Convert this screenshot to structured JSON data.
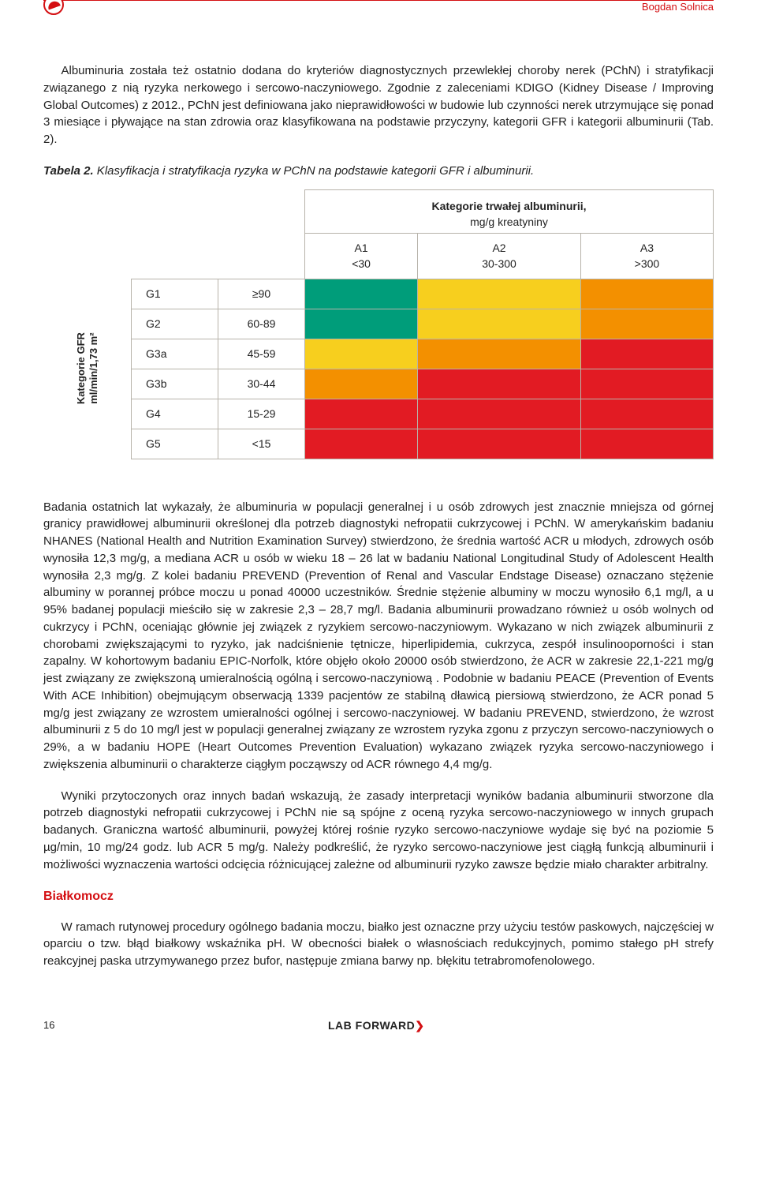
{
  "header": {
    "author": "Bogdan Solnica"
  },
  "paragraphs": {
    "intro": "Albuminuria została też ostatnio dodana do kryteriów diagnostycznych przewlekłej choroby nerek (PChN) i stratyfikacji związanego z nią ryzyka nerkowego i sercowo-naczyniowego. Zgodnie z zaleceniami KDIGO (Kidney Disease / Improving Global Outcomes) z 2012., PChN jest definiowana jako nieprawidłowości w budowie lub czynności nerek utrzymujące się ponad 3 miesiące i pływające na stan zdrowia oraz klasyfikowana na podstawie przyczyny, kategorii GFR i kategorii albuminurii (Tab. 2).",
    "mid1": "Badania ostatnich lat wykazały, że albuminuria w populacji generalnej i u osób zdrowych jest znacznie mniejsza od górnej granicy prawidłowej albuminurii określonej dla potrzeb diagnostyki nefropatii cukrzycowej i PChN. W amerykańskim badaniu NHANES (National Health and Nutrition Examination Survey) stwierdzono, że średnia wartość ACR u młodych, zdrowych osób wynosiła 12,3 mg/g, a mediana ACR u osób w wieku 18 – 26 lat w badaniu National Longitudinal Study of Adolescent Health wynosiła 2,3 mg/g. Z kolei badaniu PREVEND (Prevention of Renal and Vascular Endstage Disease) oznaczano stężenie albuminy w porannej próbce moczu u ponad 40000 uczestników. Średnie stężenie albuminy w moczu wynosiło 6,1 mg/l, a u 95% badanej populacji mieściło się w zakresie 2,3 – 28,7 mg/l. Badania albuminurii prowadzano również u osób wolnych od cukrzycy i PChN, oceniając głównie jej związek z ryzykiem sercowo-naczyniowym. Wykazano w nich związek albuminurii z chorobami zwiększającymi to ryzyko, jak nadciśnienie tętnicze, hiperlipidemia, cukrzyca, zespół insulinooporności i stan zapalny. W kohortowym badaniu EPIC-Norfolk, które objęło około 20000 osób stwierdzono, że ACR w zakresie 22,1-221 mg/g jest związany ze zwiększoną umieralnością ogólną i sercowo-naczyniową . Podobnie w badaniu PEACE (Prevention of Events With ACE Inhibition) obejmującym obserwacją 1339 pacjentów ze stabilną dławicą piersiową stwierdzono, że ACR ponad 5 mg/g jest związany ze wzrostem umieralności ogólnej i sercowo-naczyniowej. W badaniu PREVEND, stwierdzono, że wzrost albuminurii z 5 do 10 mg/l jest w populacji generalnej związany ze wzrostem ryzyka zgonu z przyczyn sercowo-naczyniowych o 29%, a w badaniu HOPE (Heart Outcomes Prevention Evaluation) wykazano związek ryzyka sercowo-naczyniowego i zwiększenia albuminurii o charakterze ciągłym począwszy od ACR równego 4,4 mg/g.",
    "mid2": "Wyniki przytoczonych oraz innych badań wskazują, że zasady interpretacji wyników badania albuminurii stworzone dla potrzeb diagnostyki nefropatii cukrzycowej i PChN nie są spójne z oceną ryzyka sercowo-naczyniowego w innych grupach badanych. Graniczna wartość albuminurii, powyżej której rośnie ryzyko sercowo-naczyniowe wydaje się być na poziomie 5 µg/min, 10 mg/24 godz. lub ACR 5 mg/g. Należy podkreślić, że ryzyko sercowo-naczyniowe jest ciągłą funkcją albuminurii i możliwości wyznaczenia wartości odcięcia różnicującej zależne od albuminurii ryzyko zawsze będzie miało charakter arbitralny.",
    "protein": "W ramach rutynowej procedury ogólnego badania moczu, białko jest oznaczne przy użyciu testów paskowych, najczęściej w oparciu o tzw. błąd białkowy wskaźnika pH. W obecności białek o własnościach redukcyjnych, pomimo stałego pH strefy reakcyjnej paska utrzymywanego przez bufor, następuje zmiana barwy np. błękitu tetrabromofenolowego."
  },
  "table": {
    "caption_bold": "Tabela 2.",
    "caption_rest": " Klasyfikacja i stratyfikacja ryzyka w PChN na podstawie kategorii GFR i albuminurii.",
    "alb_header_l1": "Kategorie trwałej albuminurii,",
    "alb_header_l2": "mg/g kreatyniny",
    "gfr_vlabel_l1": "Kategorie GFR",
    "gfr_vlabel_l2": "ml/min/1,73 m²",
    "albumin_cols": [
      {
        "code": "A1",
        "range": "<30"
      },
      {
        "code": "A2",
        "range": "30-300"
      },
      {
        "code": "A3",
        "range": ">300"
      }
    ],
    "gfr_rows": [
      {
        "code": "G1",
        "range": "≥90",
        "colors": [
          "#009d7a",
          "#f7cf1e",
          "#f39000"
        ]
      },
      {
        "code": "G2",
        "range": "60-89",
        "colors": [
          "#009d7a",
          "#f7cf1e",
          "#f39000"
        ]
      },
      {
        "code": "G3a",
        "range": "45-59",
        "colors": [
          "#f7cf1e",
          "#f39000",
          "#e21b23"
        ]
      },
      {
        "code": "G3b",
        "range": "30-44",
        "colors": [
          "#f39000",
          "#e21b23",
          "#e21b23"
        ]
      },
      {
        "code": "G4",
        "range": "15-29",
        "colors": [
          "#e21b23",
          "#e21b23",
          "#e21b23"
        ]
      },
      {
        "code": "G5",
        "range": "<15",
        "colors": [
          "#e21b23",
          "#e21b23",
          "#e21b23"
        ]
      }
    ]
  },
  "section": {
    "proteinuria": "Białkomocz"
  },
  "footer": {
    "page": "16",
    "brand_a": "LAB",
    "brand_b": "FORWARD"
  }
}
